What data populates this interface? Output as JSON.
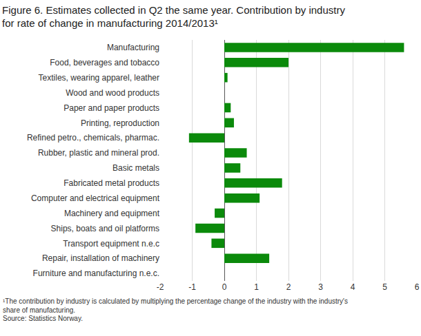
{
  "chart_data": {
    "type": "bar",
    "orientation": "horizontal",
    "title": "Figure 6. Estimates collected in Q2 the same year. Contribution by industry\nfor rate of change in manufacturing 2014/2013¹",
    "annotations": [
      "¹The contribution by industry is calculated by multiplying the percentage change of the industry with the industry's\nshare of manufacturing.",
      "Source: Statistics Norway."
    ],
    "categories": [
      "Manufacturing",
      "Food, beverages and tobacco",
      "Textiles, wearing apparel, leather",
      "Wood and wood products",
      "Paper and paper products",
      "Printing, reproduction",
      "Refined petro., chemicals, pharmac.",
      "Rubber, plastic and mineral prod.",
      "Basic metals",
      "Fabricated metal products",
      "Computer and electrical equipment",
      "Machinery and equipment",
      "Ships, boats and oil platforms",
      "Transport equipment n.e.c",
      "Repair, installation of machinery",
      "Furniture and manufacturing n.e.c."
    ],
    "values": [
      5.6,
      2.0,
      0.1,
      0.0,
      0.2,
      0.3,
      -1.1,
      0.7,
      0.5,
      1.8,
      1.1,
      -0.3,
      -0.9,
      -0.4,
      1.4,
      0.0
    ],
    "color": "#0b8a0b",
    "xlim": [
      -2,
      6
    ],
    "xticks": [
      -2,
      -1,
      0,
      1,
      2,
      3,
      4,
      5,
      6
    ],
    "grid": true
  }
}
